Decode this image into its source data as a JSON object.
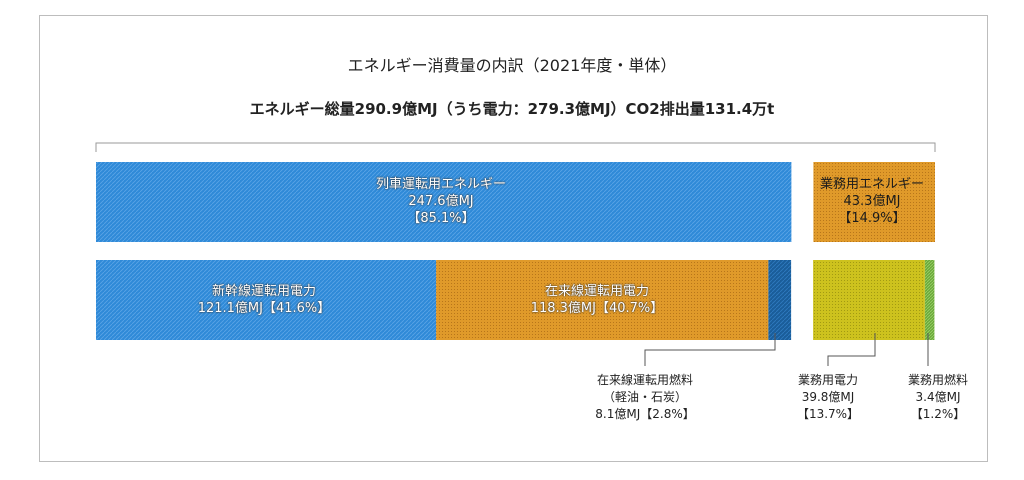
{
  "title": "エネルギー消費量の内訳（2021年度・単体）",
  "subtitle": "エネルギー総量290.9億MJ（うち電力：279.3億MJ）CO2排出量131.4万t",
  "colors": {
    "blue": "#2f8ad8",
    "orange": "#e09a2a",
    "dark_blue": "#1a5d9a",
    "yellow": "#c9c01c",
    "green": "#6aaa3a"
  },
  "chart_data": {
    "type": "bar",
    "unit": "億MJ",
    "total": 290.9,
    "rows": [
      {
        "segments": [
          {
            "id": "train",
            "name": "列車運転用エネルギー",
            "value": 247.6,
            "value_text": "247.6億MJ",
            "pct_text": "【85.1%】",
            "color": "blue"
          },
          {
            "id": "office",
            "name": "業務用エネルギー",
            "value": 43.3,
            "value_text": "43.3億MJ",
            "pct_text": "【14.9%】",
            "color": "orange"
          }
        ]
      },
      {
        "segments": [
          {
            "id": "shinkansen",
            "name": "新幹線運転用電力",
            "value": 121.1,
            "value_text": "121.1億MJ【41.6%】",
            "color": "blue"
          },
          {
            "id": "conventional",
            "name": "在来線運転用電力",
            "value": 118.3,
            "value_text": "118.3億MJ【40.7%】",
            "color": "orange"
          },
          {
            "id": "conv_fuel",
            "name": "在来線運転用燃料",
            "note": "（軽油・石炭）",
            "value": 8.1,
            "value_text": "8.1億MJ【2.8%】",
            "color": "dark_blue"
          },
          {
            "id": "office_power",
            "name": "業務用電力",
            "value": 39.8,
            "value_text": "39.8億MJ",
            "pct_text": "【13.7%】",
            "color": "yellow"
          },
          {
            "id": "office_fuel",
            "name": "業務用燃料",
            "value": 3.4,
            "value_text": "3.4億MJ",
            "pct_text": "【1.2%】",
            "color": "green"
          }
        ]
      }
    ]
  }
}
